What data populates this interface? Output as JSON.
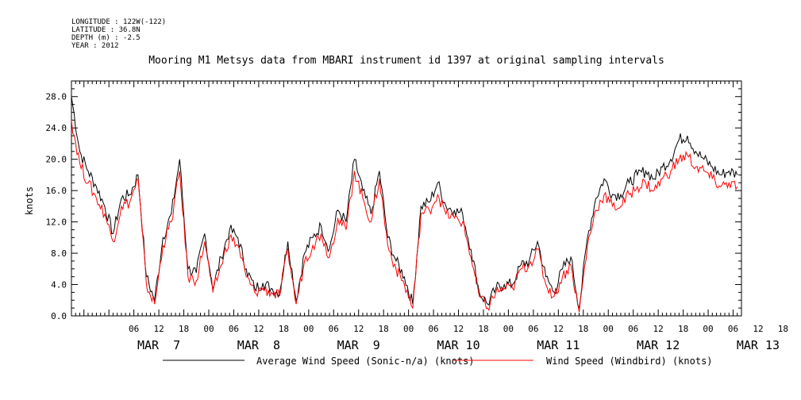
{
  "meta": {
    "longitude": "LONGITUDE : 122W(-122)",
    "latitude": "LATITUDE : 36.8N",
    "depth": "DEPTH (m) : -2.5",
    "year": "YEAR : 2012"
  },
  "chart_data": {
    "type": "line",
    "title": "Mooring M1 Metsys data from MBARI instrument id 1397 at original sampling intervals",
    "ylabel": "knots",
    "xlabel": "",
    "ylim": [
      0,
      30
    ],
    "xlim_hours_from_mar7_0000": [
      -9,
      152
    ],
    "y_ticks": [
      "0.0",
      "4.0",
      "8.0",
      "12.0",
      "16.0",
      "20.0",
      "24.0",
      "28.0"
    ],
    "x_hour_ticks": [
      "06",
      "12",
      "18",
      "00",
      "06",
      "12",
      "18",
      "00",
      "06",
      "12",
      "18",
      "00",
      "06",
      "12",
      "18",
      "00",
      "06",
      "12",
      "18",
      "00",
      "06",
      "12",
      "18",
      "00",
      "06",
      "12",
      "18",
      "00"
    ],
    "x_day_labels": [
      "MAR  7",
      "MAR  8",
      "MAR  9",
      "MAR 10",
      "MAR 11",
      "MAR 12",
      "MAR 13"
    ],
    "grid": false,
    "legend": "bottom",
    "series": [
      {
        "name": "Average Wind Speed (Sonic-n/a) (knots)",
        "color": "#000000",
        "x": [
          -9,
          -7,
          -5,
          -3,
          -1,
          1,
          3,
          5,
          7,
          9,
          11,
          13,
          15,
          17,
          19,
          21,
          23,
          25,
          27,
          29,
          31,
          33,
          35,
          37,
          39,
          41,
          43,
          45,
          47,
          49,
          51,
          53,
          55,
          57,
          59,
          61,
          63,
          65,
          67,
          69,
          71,
          73,
          75,
          77,
          79,
          81,
          83,
          85,
          87,
          89,
          91,
          93,
          95,
          97,
          99,
          101,
          103,
          105,
          107,
          109,
          111,
          113,
          115,
          117,
          119,
          121,
          123,
          125,
          127,
          129,
          131,
          133,
          135,
          137,
          139,
          141,
          143,
          145,
          147,
          149,
          151
        ],
        "values": [
          28.0,
          21.0,
          18.5,
          16.5,
          14.0,
          10.5,
          15.0,
          15.5,
          18.0,
          5.0,
          2.0,
          10.0,
          13.0,
          20.0,
          6.0,
          5.5,
          10.5,
          3.5,
          7.5,
          11.0,
          10.0,
          6.0,
          3.5,
          4.2,
          3.5,
          3.0,
          9.5,
          2.0,
          8.0,
          10.0,
          11.5,
          8.5,
          13.5,
          12.0,
          20.0,
          16.0,
          13.0,
          18.5,
          10.0,
          7.0,
          5.0,
          1.5,
          14.0,
          14.5,
          17.0,
          14.0,
          13.5,
          13.0,
          8.5,
          3.0,
          1.5,
          3.5,
          4.0,
          4.0,
          6.5,
          7.0,
          9.5,
          5.0,
          3.0,
          6.0,
          7.5,
          1.0,
          10.0,
          15.0,
          17.5,
          15.5,
          15.5,
          17.0,
          18.0,
          18.5,
          17.5,
          19.0,
          20.0,
          22.5,
          23.0,
          21.0,
          20.0,
          19.0,
          18.0,
          18.5,
          18.0
        ]
      },
      {
        "name": "Wind Speed (Windbird) (knots)",
        "color": "#ff0000",
        "x": [
          -9,
          -7,
          -5,
          -3,
          -1,
          1,
          3,
          5,
          7,
          9,
          11,
          13,
          15,
          17,
          19,
          21,
          23,
          25,
          27,
          29,
          31,
          33,
          35,
          37,
          39,
          41,
          43,
          45,
          47,
          49,
          51,
          53,
          55,
          57,
          59,
          61,
          63,
          65,
          67,
          69,
          71,
          73,
          75,
          77,
          79,
          81,
          83,
          85,
          87,
          89,
          91,
          93,
          95,
          97,
          99,
          101,
          103,
          105,
          107,
          109,
          111,
          113,
          115,
          117,
          119,
          121,
          123,
          125,
          127,
          129,
          131,
          133,
          135,
          137,
          139,
          141,
          143,
          145,
          147,
          149,
          151
        ],
        "values": [
          25.0,
          19.5,
          17.0,
          15.0,
          13.0,
          9.5,
          14.0,
          14.5,
          17.5,
          4.0,
          1.5,
          9.0,
          12.0,
          18.5,
          5.0,
          4.5,
          9.5,
          3.0,
          6.5,
          10.0,
          9.0,
          5.0,
          3.0,
          3.5,
          3.0,
          2.5,
          8.5,
          1.5,
          7.0,
          9.0,
          10.5,
          7.5,
          12.5,
          11.0,
          18.5,
          15.0,
          12.0,
          17.5,
          9.0,
          6.0,
          4.0,
          1.0,
          13.0,
          13.5,
          15.5,
          13.0,
          12.5,
          12.0,
          7.5,
          2.5,
          1.0,
          3.0,
          3.5,
          3.5,
          6.0,
          6.5,
          8.5,
          4.0,
          2.5,
          5.0,
          6.5,
          0.5,
          9.0,
          13.5,
          15.5,
          14.0,
          14.0,
          15.5,
          16.5,
          17.0,
          16.0,
          17.5,
          18.5,
          20.0,
          20.5,
          19.0,
          18.5,
          17.5,
          16.5,
          17.0,
          16.5
        ]
      }
    ]
  }
}
